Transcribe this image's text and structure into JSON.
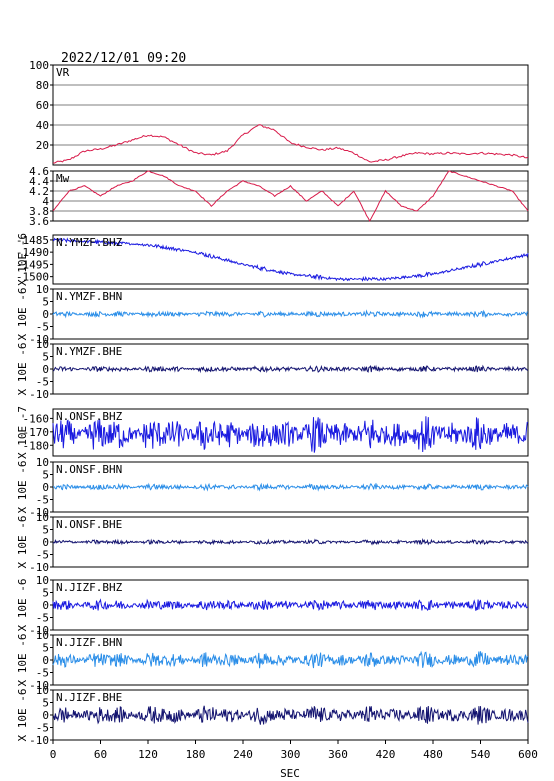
{
  "header": {
    "datetime": "2022/12/01 09:20"
  },
  "colors": {
    "vr": "#d81b4a",
    "mw": "#d81b4a",
    "bhz": "#1a1ae0",
    "bhn": "#2b8ee8",
    "bhe": "#141470",
    "axis": "#000000"
  },
  "xaxis": {
    "label": "SEC",
    "range": [
      0,
      600
    ],
    "ticks": [
      0,
      60,
      120,
      180,
      240,
      300,
      360,
      420,
      480,
      540,
      600
    ]
  },
  "chart_data": [
    {
      "type": "line",
      "panel_label": "VR",
      "color_key": "vr",
      "ylim": [
        0,
        100
      ],
      "yticks": [
        20,
        40,
        60,
        80,
        100
      ],
      "grid": true,
      "x": [
        0,
        20,
        40,
        60,
        80,
        100,
        120,
        140,
        160,
        180,
        200,
        220,
        240,
        260,
        280,
        300,
        320,
        340,
        360,
        380,
        400,
        420,
        440,
        460,
        480,
        500,
        520,
        540,
        560,
        580,
        600
      ],
      "y": [
        2,
        5,
        14,
        16,
        20,
        25,
        30,
        28,
        20,
        12,
        10,
        14,
        30,
        40,
        35,
        22,
        18,
        15,
        17,
        12,
        3,
        5,
        9,
        12,
        11,
        12,
        11,
        12,
        11,
        10,
        7
      ]
    },
    {
      "type": "line",
      "panel_label": "Mw",
      "color_key": "mw",
      "ylim": [
        3.6,
        4.6
      ],
      "yticks": [
        3.6,
        3.8,
        4.0,
        4.2,
        4.4,
        4.6
      ],
      "grid": true,
      "x": [
        0,
        20,
        40,
        60,
        80,
        100,
        120,
        140,
        160,
        180,
        200,
        220,
        240,
        260,
        280,
        300,
        320,
        340,
        360,
        380,
        400,
        420,
        440,
        460,
        480,
        500,
        520,
        540,
        560,
        580,
        600
      ],
      "y": [
        3.8,
        4.2,
        4.3,
        4.1,
        4.3,
        4.4,
        4.6,
        4.5,
        4.3,
        4.2,
        3.9,
        4.2,
        4.4,
        4.3,
        4.1,
        4.3,
        4.0,
        4.2,
        3.9,
        4.2,
        3.6,
        4.2,
        3.9,
        3.8,
        4.1,
        4.6,
        4.5,
        4.4,
        4.3,
        4.2,
        3.8
      ]
    },
    {
      "type": "line",
      "panel_label": "N.YMZF.BHZ",
      "color_key": "bhz",
      "ylabel": "X 10E -6",
      "ylim": [
        -1503,
        -1483
      ],
      "yticks": [
        -1485,
        -1490,
        -1495,
        -1500
      ],
      "trend_x": [
        0,
        60,
        120,
        180,
        240,
        300,
        360,
        420,
        480,
        540,
        600
      ],
      "trend_y": [
        -1485,
        -1486,
        -1487,
        -1490,
        -1495,
        -1499,
        -1501,
        -1501,
        -1499,
        -1495,
        -1491
      ],
      "noise_amp": 0.6
    },
    {
      "type": "line",
      "panel_label": "N.YMZF.BHN",
      "color_key": "bhn",
      "ylabel": "X 10E -6",
      "ylim": [
        -10,
        10
      ],
      "yticks": [
        -10,
        -5,
        0,
        5,
        10
      ],
      "noise_amp": 0.8
    },
    {
      "type": "line",
      "panel_label": "N.YMZF.BHE",
      "color_key": "bhe",
      "ylabel": "X 10E -6",
      "ylim": [
        -10,
        10
      ],
      "yticks": [
        -10,
        -5,
        0,
        5,
        10
      ],
      "noise_amp": 0.8
    },
    {
      "type": "line",
      "panel_label": "N.ONSF.BHZ",
      "color_key": "bhz",
      "ylabel": "X 10E -7",
      "ylim": [
        -188,
        -153
      ],
      "yticks": [
        -160,
        -170,
        -180
      ],
      "center": -172,
      "noise_amp": 9
    },
    {
      "type": "line",
      "panel_label": "N.ONSF.BHN",
      "color_key": "bhn",
      "ylabel": "X 10E -6",
      "ylim": [
        -10,
        10
      ],
      "yticks": [
        -10,
        -5,
        0,
        5,
        10
      ],
      "noise_amp": 0.8
    },
    {
      "type": "line",
      "panel_label": "N.ONSF.BHE",
      "color_key": "bhe",
      "ylabel": "X 10E -6",
      "ylim": [
        -10,
        10
      ],
      "yticks": [
        -10,
        -5,
        0,
        5,
        10
      ],
      "noise_amp": 0.6
    },
    {
      "type": "line",
      "panel_label": "N.JIZF.BHZ",
      "color_key": "bhz",
      "ylabel": "X 10E -6",
      "ylim": [
        -10,
        10
      ],
      "yticks": [
        -10,
        -5,
        0,
        5,
        10
      ],
      "noise_amp": 1.6
    },
    {
      "type": "line",
      "panel_label": "N.JIZF.BHN",
      "color_key": "bhn",
      "ylabel": "X 10E -6",
      "ylim": [
        -10,
        10
      ],
      "yticks": [
        -10,
        -5,
        0,
        5,
        10
      ],
      "noise_amp": 2.2
    },
    {
      "type": "line",
      "panel_label": "N.JIZF.BHE",
      "color_key": "bhe",
      "ylabel": "X 10E -6",
      "ylim": [
        -10,
        10
      ],
      "yticks": [
        -10,
        -5,
        0,
        5,
        10
      ],
      "noise_amp": 2.6
    }
  ]
}
